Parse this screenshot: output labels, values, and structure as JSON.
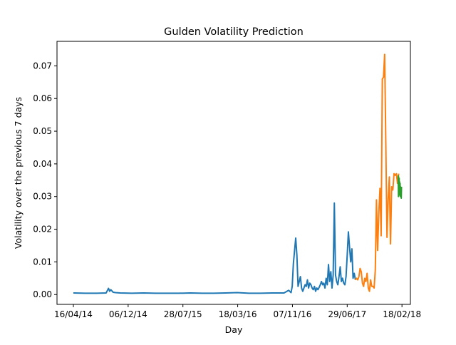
{
  "chart_data": {
    "type": "line",
    "title": "Gulden Volatility Prediction",
    "xlabel": "Day",
    "ylabel": "Volatility over the previous 7 days",
    "x_ticks": [
      "16/04/14",
      "06/12/14",
      "28/07/15",
      "18/03/16",
      "07/11/16",
      "29/06/17",
      "18/02/18"
    ],
    "y_ticks": [
      "0.00",
      "0.01",
      "0.02",
      "0.03",
      "0.04",
      "0.05",
      "0.06",
      "0.07"
    ],
    "xlim": [
      -70,
      1440
    ],
    "ylim": [
      -0.003,
      0.0775
    ],
    "grid": false,
    "series": [
      {
        "color": "#1f77b4",
        "x": [
          0,
          50,
          100,
          140,
          150,
          155,
          160,
          170,
          180,
          200,
          250,
          300,
          350,
          400,
          450,
          500,
          550,
          600,
          650,
          700,
          750,
          800,
          850,
          900,
          920,
          930,
          935,
          940,
          950,
          955,
          960,
          965,
          970,
          975,
          980,
          985,
          990,
          995,
          1000,
          1005,
          1010,
          1015,
          1020,
          1025,
          1030,
          1035,
          1040,
          1045,
          1050,
          1055,
          1060,
          1065,
          1070,
          1075,
          1080,
          1085,
          1090,
          1095,
          1100,
          1105,
          1110,
          1115,
          1120,
          1125,
          1130,
          1135,
          1140,
          1145,
          1150,
          1155,
          1160,
          1165,
          1170,
          1175,
          1180,
          1185,
          1190,
          1195,
          1200,
          1205
        ],
        "y": [
          0.0005,
          0.0004,
          0.0004,
          0.0005,
          0.0019,
          0.001,
          0.0015,
          0.0007,
          0.0006,
          0.0005,
          0.0004,
          0.0005,
          0.0004,
          0.0004,
          0.0004,
          0.0005,
          0.0004,
          0.0004,
          0.0005,
          0.0006,
          0.0004,
          0.0004,
          0.0005,
          0.0005,
          0.0013,
          0.0006,
          0.0025,
          0.0095,
          0.0173,
          0.012,
          0.0025,
          0.004,
          0.0055,
          0.002,
          0.001,
          0.002,
          0.003,
          0.0025,
          0.0045,
          0.002,
          0.0035,
          0.003,
          0.002,
          0.0015,
          0.0025,
          0.001,
          0.002,
          0.0015,
          0.0022,
          0.003,
          0.004,
          0.003,
          0.0035,
          0.002,
          0.005,
          0.003,
          0.0092,
          0.004,
          0.007,
          0.002,
          0.006,
          0.028,
          0.006,
          0.004,
          0.003,
          0.0055,
          0.0085,
          0.004,
          0.005,
          0.0035,
          0.003,
          0.0055,
          0.012,
          0.0192,
          0.0145,
          0.01,
          0.014,
          0.005,
          0.0065,
          0.0045
        ]
      },
      {
        "color": "#ff7f0e",
        "x": [
          1205,
          1210,
          1215,
          1220,
          1225,
          1230,
          1235,
          1240,
          1245,
          1250,
          1255,
          1260,
          1265,
          1270,
          1275,
          1280,
          1285,
          1290,
          1295,
          1300,
          1305,
          1310,
          1315,
          1320,
          1325,
          1330,
          1335,
          1340,
          1345,
          1350,
          1355,
          1360,
          1365,
          1370,
          1375,
          1380,
          1385,
          1390
        ],
        "y": [
          0.0045,
          0.005,
          0.0045,
          0.0055,
          0.008,
          0.007,
          0.0035,
          0.0025,
          0.005,
          0.004,
          0.0065,
          0.002,
          0.001,
          0.0045,
          0.0025,
          0.0025,
          0.002,
          0.0075,
          0.029,
          0.0135,
          0.025,
          0.0325,
          0.018,
          0.066,
          0.0665,
          0.0735,
          0.046,
          0.0175,
          0.029,
          0.036,
          0.0155,
          0.033,
          0.032,
          0.037,
          0.0365,
          0.037,
          0.034,
          0.037
        ]
      },
      {
        "color": "#2ca02c",
        "x": [
          1388,
          1389,
          1390,
          1391,
          1392,
          1393,
          1394,
          1395,
          1396,
          1397,
          1398,
          1399,
          1400,
          1401,
          1402
        ],
        "y": [
          0.0365,
          0.03,
          0.036,
          0.031,
          0.0355,
          0.0305,
          0.0345,
          0.031,
          0.034,
          0.03,
          0.033,
          0.0305,
          0.0325,
          0.0295,
          0.033
        ]
      }
    ]
  }
}
